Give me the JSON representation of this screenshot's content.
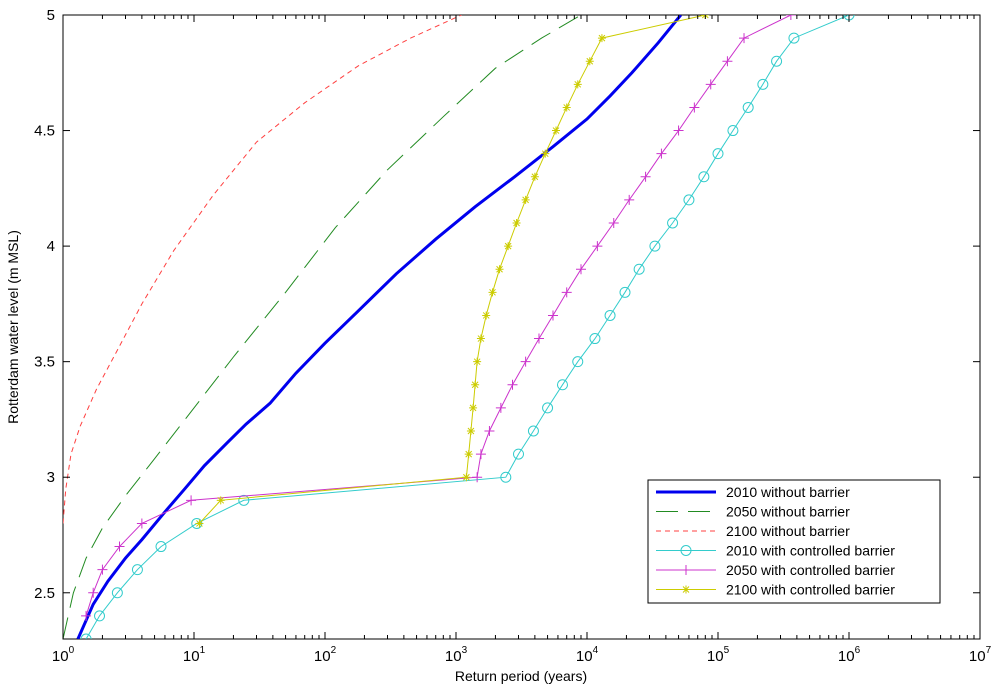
{
  "chart_data": {
    "type": "line",
    "title": "",
    "xlabel": "Return period (years)",
    "ylabel": "Rotterdam water level (m MSL)",
    "xscale": "log",
    "xlim": [
      1,
      10000000
    ],
    "ylim": [
      2.3,
      5
    ],
    "x_tick_labels": [
      {
        "base": "10",
        "exp": "0"
      },
      {
        "base": "10",
        "exp": "1"
      },
      {
        "base": "10",
        "exp": "2"
      },
      {
        "base": "10",
        "exp": "3"
      },
      {
        "base": "10",
        "exp": "4"
      },
      {
        "base": "10",
        "exp": "5"
      },
      {
        "base": "10",
        "exp": "6"
      },
      {
        "base": "10",
        "exp": "7"
      }
    ],
    "y_tick_labels": [
      "2.5",
      "3",
      "3.5",
      "4",
      "4.5",
      "5"
    ],
    "grid": false,
    "legend_position": "bottom-right",
    "series": [
      {
        "name": "2010 without barrier",
        "color": "#0000ee",
        "style": "solid-thick",
        "marker": "none",
        "points": [
          [
            1.3,
            2.3
          ],
          [
            1.7,
            2.45
          ],
          [
            2.2,
            2.55
          ],
          [
            3.0,
            2.65
          ],
          [
            4.0,
            2.73
          ],
          [
            6.0,
            2.85
          ],
          [
            8.5,
            2.95
          ],
          [
            12,
            3.05
          ],
          [
            18,
            3.15
          ],
          [
            25,
            3.23
          ],
          [
            38,
            3.32
          ],
          [
            60,
            3.45
          ],
          [
            100,
            3.58
          ],
          [
            180,
            3.72
          ],
          [
            350,
            3.88
          ],
          [
            700,
            4.03
          ],
          [
            1400,
            4.17
          ],
          [
            2800,
            4.3
          ],
          [
            5500,
            4.43
          ],
          [
            10000,
            4.55
          ],
          [
            15000,
            4.65
          ],
          [
            22000,
            4.75
          ],
          [
            35000,
            4.88
          ],
          [
            52000,
            5.0
          ]
        ]
      },
      {
        "name": "2050 without barrier",
        "color": "#228b22",
        "style": "dashed-long",
        "marker": "none",
        "points": [
          [
            1.0,
            2.3
          ],
          [
            1.2,
            2.5
          ],
          [
            1.5,
            2.65
          ],
          [
            2.0,
            2.78
          ],
          [
            3.0,
            2.92
          ],
          [
            5.0,
            3.08
          ],
          [
            10,
            3.3
          ],
          [
            20,
            3.52
          ],
          [
            50,
            3.8
          ],
          [
            120,
            4.08
          ],
          [
            300,
            4.33
          ],
          [
            800,
            4.56
          ],
          [
            2000,
            4.77
          ],
          [
            4500,
            4.9
          ],
          [
            9000,
            5.0
          ]
        ]
      },
      {
        "name": "2100 without barrier",
        "color": "#ff4040",
        "style": "dashed-short",
        "marker": "none",
        "points": [
          [
            1.0,
            2.8
          ],
          [
            1.05,
            2.95
          ],
          [
            1.15,
            3.1
          ],
          [
            1.35,
            3.22
          ],
          [
            1.8,
            3.38
          ],
          [
            2.6,
            3.55
          ],
          [
            4.0,
            3.75
          ],
          [
            7.0,
            3.98
          ],
          [
            14,
            4.22
          ],
          [
            30,
            4.45
          ],
          [
            70,
            4.62
          ],
          [
            180,
            4.78
          ],
          [
            450,
            4.9
          ],
          [
            1100,
            5.0
          ]
        ]
      },
      {
        "name": "2010 with controlled barrier",
        "color": "#33cccc",
        "style": "solid-thin",
        "marker": "circle",
        "points": [
          [
            1.5,
            2.3
          ],
          [
            1.9,
            2.4
          ],
          [
            2.6,
            2.5
          ],
          [
            3.7,
            2.6
          ],
          [
            5.6,
            2.7
          ],
          [
            10.5,
            2.8
          ],
          [
            24,
            2.9
          ],
          [
            2400,
            3.0
          ],
          [
            3000,
            3.1
          ],
          [
            3900,
            3.2
          ],
          [
            5000,
            3.3
          ],
          [
            6500,
            3.4
          ],
          [
            8500,
            3.5
          ],
          [
            11500,
            3.6
          ],
          [
            15000,
            3.7
          ],
          [
            19500,
            3.8
          ],
          [
            25000,
            3.9
          ],
          [
            33000,
            4.0
          ],
          [
            45000,
            4.1
          ],
          [
            60000,
            4.2
          ],
          [
            78000,
            4.3
          ],
          [
            100000,
            4.4
          ],
          [
            130000,
            4.5
          ],
          [
            170000,
            4.6
          ],
          [
            220000,
            4.7
          ],
          [
            280000,
            4.8
          ],
          [
            380000,
            4.9
          ],
          [
            1000000,
            5.0
          ]
        ]
      },
      {
        "name": "2050 with controlled barrier",
        "color": "#cc33cc",
        "style": "solid-thin",
        "marker": "plus",
        "points": [
          [
            1.5,
            2.4
          ],
          [
            1.7,
            2.5
          ],
          [
            2.0,
            2.6
          ],
          [
            2.7,
            2.7
          ],
          [
            4.0,
            2.8
          ],
          [
            9.5,
            2.9
          ],
          [
            1450,
            3.0
          ],
          [
            1550,
            3.1
          ],
          [
            1800,
            3.2
          ],
          [
            2200,
            3.3
          ],
          [
            2700,
            3.4
          ],
          [
            3400,
            3.5
          ],
          [
            4300,
            3.6
          ],
          [
            5500,
            3.7
          ],
          [
            7000,
            3.8
          ],
          [
            9000,
            3.9
          ],
          [
            12000,
            4.0
          ],
          [
            16000,
            4.1
          ],
          [
            21000,
            4.2
          ],
          [
            28000,
            4.3
          ],
          [
            37000,
            4.4
          ],
          [
            50000,
            4.5
          ],
          [
            66000,
            4.6
          ],
          [
            88000,
            4.7
          ],
          [
            118000,
            4.8
          ],
          [
            158000,
            4.9
          ],
          [
            360000,
            5.0
          ]
        ]
      },
      {
        "name": "2100 with controlled barrier",
        "color": "#cccc00",
        "style": "solid-thin",
        "marker": "star",
        "points": [
          [
            11,
            2.8
          ],
          [
            16,
            2.9
          ],
          [
            1200,
            3.0
          ],
          [
            1250,
            3.1
          ],
          [
            1300,
            3.2
          ],
          [
            1350,
            3.3
          ],
          [
            1400,
            3.4
          ],
          [
            1450,
            3.5
          ],
          [
            1550,
            3.6
          ],
          [
            1700,
            3.7
          ],
          [
            1900,
            3.8
          ],
          [
            2150,
            3.9
          ],
          [
            2500,
            4.0
          ],
          [
            2900,
            4.1
          ],
          [
            3400,
            4.2
          ],
          [
            4000,
            4.3
          ],
          [
            4800,
            4.4
          ],
          [
            5800,
            4.5
          ],
          [
            7000,
            4.6
          ],
          [
            8500,
            4.7
          ],
          [
            10500,
            4.8
          ],
          [
            13000,
            4.9
          ],
          [
            80000,
            5.0
          ]
        ]
      }
    ]
  }
}
